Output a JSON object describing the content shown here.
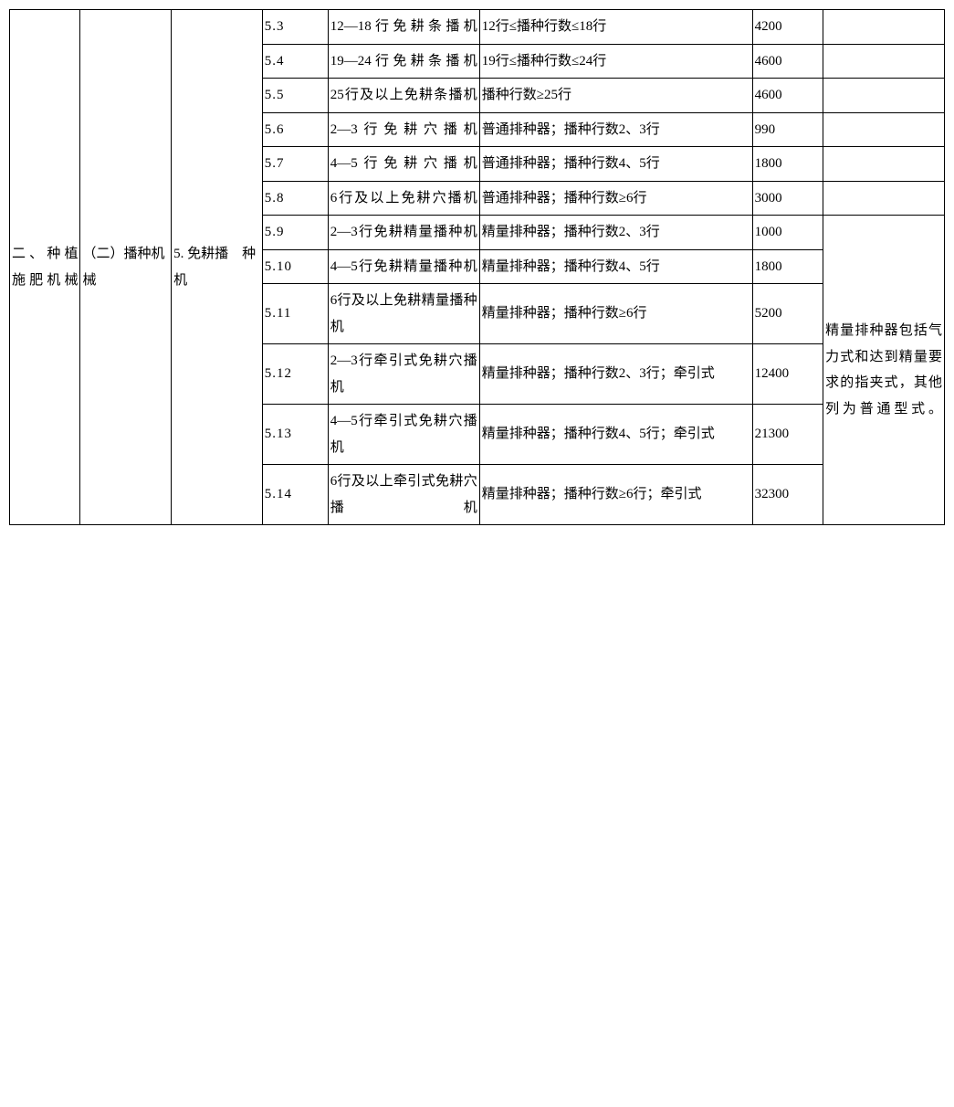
{
  "table": {
    "border_color": "#000000",
    "background_color": "#ffffff",
    "font_size": 15,
    "col1": "二、种植施肥机械",
    "col2": "（二）播种机械",
    "col3": "5. 免耕播　种机",
    "note_group_b": "精量排种器包括气力式和达到精量要求的指夹式，其他列为普通型式。",
    "rows": [
      {
        "code": "5.3",
        "name": "12—18行免耕条播机",
        "spec": "12行≤播种行数≤18行",
        "price": "4200",
        "note": ""
      },
      {
        "code": "5.4",
        "name": "19—24行免耕条播机",
        "spec": "19行≤播种行数≤24行",
        "price": "4600",
        "note": ""
      },
      {
        "code": "5.5",
        "name": "25行及以上免耕条播机",
        "spec": "播种行数≥25行",
        "price": "4600",
        "note": ""
      },
      {
        "code": "5.6",
        "name": "2—3行免耕穴播机",
        "spec": "普通排种器；播种行数2、3行",
        "price": "990",
        "note": ""
      },
      {
        "code": "5.7",
        "name": "4—5行免耕穴播机",
        "spec": "普通排种器；播种行数4、5行",
        "price": "1800",
        "note": ""
      },
      {
        "code": "5.8",
        "name": "6行及以上免耕穴播机",
        "spec": "普通排种器；播种行数≥6行",
        "price": "3000",
        "note": ""
      },
      {
        "code": "5.9",
        "name": "2—3行免耕精量播种机",
        "spec": "精量排种器；播种行数2、3行",
        "price": "1000"
      },
      {
        "code": "5.10",
        "name": "4—5行免耕精量播种机",
        "spec": "精量排种器；播种行数4、5行",
        "price": "1800"
      },
      {
        "code": "5.11",
        "name": "6行及以上免耕精量播种机",
        "spec": "精量排种器；播种行数≥6行",
        "price": "5200"
      },
      {
        "code": "5.12",
        "name": "2—3行牵引式免耕穴播机",
        "spec": "精量排种器；播种行数2、3行；牵引式",
        "price": "12400"
      },
      {
        "code": "5.13",
        "name": "4—5行牵引式免耕穴播机",
        "spec": "精量排种器；播种行数4、5行；牵引式",
        "price": "21300"
      },
      {
        "code": "5.14",
        "name": "6行及以上牵引式免耕穴播机",
        "spec": "精量排种器；播种行数≥6行；牵引式",
        "price": "32300"
      }
    ]
  }
}
